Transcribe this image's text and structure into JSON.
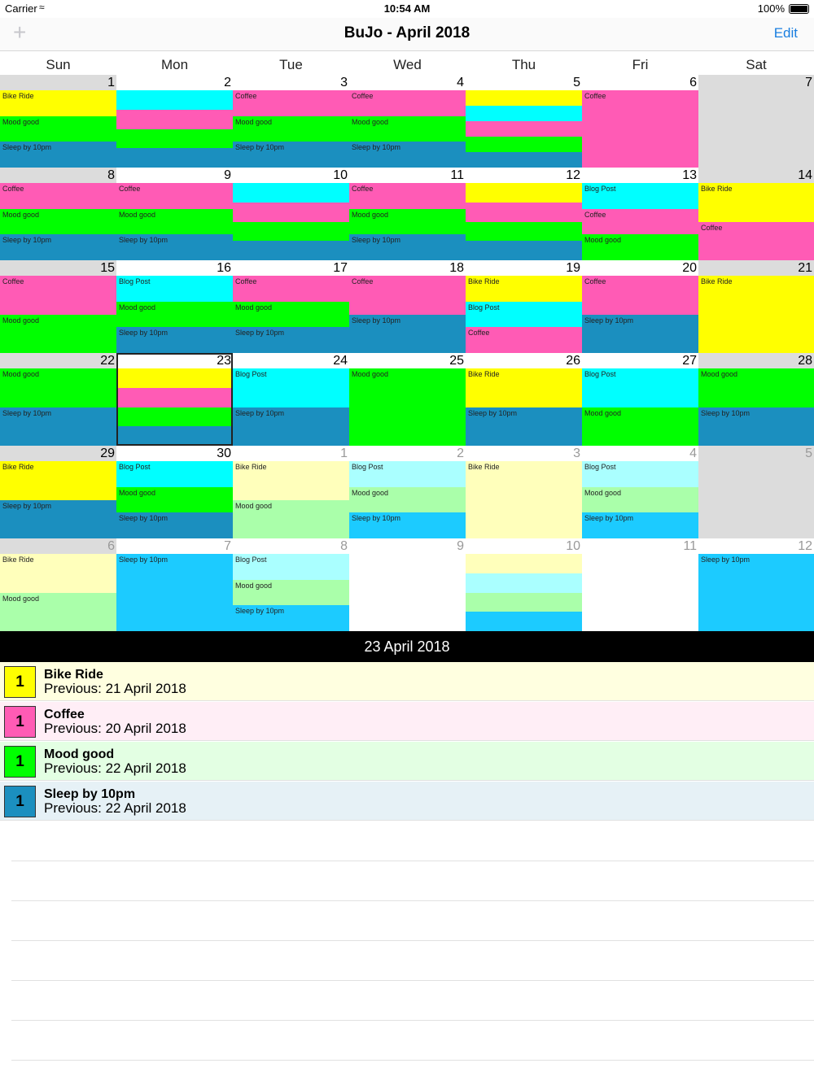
{
  "status_bar": {
    "carrier": "Carrier",
    "time": "10:54 AM",
    "battery": "100%"
  },
  "nav": {
    "title": "BuJo - April 2018",
    "edit_label": "Edit",
    "add_label": "+"
  },
  "weekdays": [
    "Sun",
    "Mon",
    "Tue",
    "Wed",
    "Thu",
    "Fri",
    "Sat"
  ],
  "colors": {
    "bike": "#ffff00",
    "coffee": "#ff5bb5",
    "mood": "#00ff00",
    "sleep": "#1b8fbf",
    "blog": "#00ffff",
    "weekend_head": "#dcdcdc",
    "weekend_empty": "#dcdcdc",
    "bike_light": "#ffffbb",
    "mood_light": "#aaffaa",
    "blog_light": "#aaffff",
    "sleep_light": "#1ccbff",
    "coffee_light": "#ffc8e6"
  },
  "calendar": {
    "selected_day": "23",
    "weeks": [
      {
        "days": [
          {
            "num": "1",
            "other": false,
            "weekend": true,
            "segs": [
              [
                "bike",
                "Bike Ride"
              ],
              [
                "mood",
                "Mood good"
              ],
              [
                "sleep",
                "Sleep by 10pm"
              ]
            ]
          },
          {
            "num": "2",
            "other": false,
            "weekend": false,
            "segs": [
              [
                "blog",
                ""
              ],
              [
                "coffee",
                ""
              ],
              [
                "mood",
                ""
              ],
              [
                "sleep",
                ""
              ]
            ]
          },
          {
            "num": "3",
            "other": false,
            "weekend": false,
            "segs": [
              [
                "coffee",
                "Coffee"
              ],
              [
                "mood",
                "Mood good"
              ],
              [
                "sleep",
                "Sleep by 10pm"
              ]
            ]
          },
          {
            "num": "4",
            "other": false,
            "weekend": false,
            "segs": [
              [
                "coffee",
                "Coffee"
              ],
              [
                "mood",
                "Mood good"
              ],
              [
                "sleep",
                "Sleep by 10pm"
              ]
            ]
          },
          {
            "num": "5",
            "other": false,
            "weekend": false,
            "segs": [
              [
                "bike",
                ""
              ],
              [
                "blog",
                ""
              ],
              [
                "coffee",
                ""
              ],
              [
                "mood",
                ""
              ],
              [
                "sleep",
                ""
              ]
            ]
          },
          {
            "num": "6",
            "other": false,
            "weekend": false,
            "segs": [
              [
                "coffee",
                "Coffee"
              ]
            ]
          },
          {
            "num": "7",
            "other": false,
            "weekend": true,
            "segs": []
          }
        ]
      },
      {
        "days": [
          {
            "num": "8",
            "other": false,
            "weekend": true,
            "segs": [
              [
                "coffee",
                "Coffee"
              ],
              [
                "mood",
                "Mood good"
              ],
              [
                "sleep",
                "Sleep by 10pm"
              ]
            ]
          },
          {
            "num": "9",
            "other": false,
            "weekend": false,
            "segs": [
              [
                "coffee",
                "Coffee"
              ],
              [
                "mood",
                "Mood good"
              ],
              [
                "sleep",
                "Sleep by 10pm"
              ]
            ]
          },
          {
            "num": "10",
            "other": false,
            "weekend": false,
            "segs": [
              [
                "blog",
                ""
              ],
              [
                "coffee",
                ""
              ],
              [
                "mood",
                ""
              ],
              [
                "sleep",
                ""
              ]
            ]
          },
          {
            "num": "11",
            "other": false,
            "weekend": false,
            "segs": [
              [
                "coffee",
                "Coffee"
              ],
              [
                "mood",
                "Mood good"
              ],
              [
                "sleep",
                "Sleep by 10pm"
              ]
            ]
          },
          {
            "num": "12",
            "other": false,
            "weekend": false,
            "segs": [
              [
                "bike",
                ""
              ],
              [
                "coffee",
                ""
              ],
              [
                "mood",
                ""
              ],
              [
                "sleep",
                ""
              ]
            ]
          },
          {
            "num": "13",
            "other": false,
            "weekend": false,
            "segs": [
              [
                "blog",
                "Blog Post"
              ],
              [
                "coffee",
                "Coffee"
              ],
              [
                "mood",
                "Mood good"
              ]
            ]
          },
          {
            "num": "14",
            "other": false,
            "weekend": true,
            "segs": [
              [
                "bike",
                "Bike Ride"
              ],
              [
                "coffee",
                "Coffee"
              ]
            ]
          }
        ]
      },
      {
        "days": [
          {
            "num": "15",
            "other": false,
            "weekend": true,
            "segs": [
              [
                "coffee",
                "Coffee"
              ],
              [
                "mood",
                "Mood good"
              ]
            ]
          },
          {
            "num": "16",
            "other": false,
            "weekend": false,
            "segs": [
              [
                "blog",
                "Blog Post"
              ],
              [
                "mood",
                "Mood good"
              ],
              [
                "sleep",
                "Sleep by 10pm"
              ]
            ]
          },
          {
            "num": "17",
            "other": false,
            "weekend": false,
            "segs": [
              [
                "coffee",
                "Coffee"
              ],
              [
                "mood",
                "Mood good"
              ],
              [
                "sleep",
                "Sleep by 10pm"
              ]
            ]
          },
          {
            "num": "18",
            "other": false,
            "weekend": false,
            "segs": [
              [
                "coffee",
                "Coffee"
              ],
              [
                "sleep",
                "Sleep by 10pm"
              ]
            ]
          },
          {
            "num": "19",
            "other": false,
            "weekend": false,
            "segs": [
              [
                "bike",
                "Bike Ride"
              ],
              [
                "blog",
                "Blog Post"
              ],
              [
                "coffee",
                "Coffee"
              ]
            ]
          },
          {
            "num": "20",
            "other": false,
            "weekend": false,
            "segs": [
              [
                "coffee",
                "Coffee"
              ],
              [
                "sleep",
                "Sleep by 10pm"
              ]
            ]
          },
          {
            "num": "21",
            "other": false,
            "weekend": true,
            "segs": [
              [
                "bike",
                "Bike Ride"
              ]
            ]
          }
        ]
      },
      {
        "days": [
          {
            "num": "22",
            "other": false,
            "weekend": true,
            "segs": [
              [
                "mood",
                "Mood good"
              ],
              [
                "sleep",
                "Sleep by 10pm"
              ]
            ]
          },
          {
            "num": "23",
            "other": false,
            "weekend": false,
            "segs": [
              [
                "bike",
                ""
              ],
              [
                "coffee",
                ""
              ],
              [
                "mood",
                ""
              ],
              [
                "sleep",
                ""
              ]
            ]
          },
          {
            "num": "24",
            "other": false,
            "weekend": false,
            "segs": [
              [
                "blog",
                "Blog Post"
              ],
              [
                "sleep",
                "Sleep by 10pm"
              ]
            ]
          },
          {
            "num": "25",
            "other": false,
            "weekend": false,
            "segs": [
              [
                "mood",
                "Mood good"
              ]
            ]
          },
          {
            "num": "26",
            "other": false,
            "weekend": false,
            "segs": [
              [
                "bike",
                "Bike Ride"
              ],
              [
                "sleep",
                "Sleep by 10pm"
              ]
            ]
          },
          {
            "num": "27",
            "other": false,
            "weekend": false,
            "segs": [
              [
                "blog",
                "Blog Post"
              ],
              [
                "mood",
                "Mood good"
              ]
            ]
          },
          {
            "num": "28",
            "other": false,
            "weekend": true,
            "segs": [
              [
                "mood",
                "Mood good"
              ],
              [
                "sleep",
                "Sleep by 10pm"
              ]
            ]
          }
        ]
      },
      {
        "days": [
          {
            "num": "29",
            "other": false,
            "weekend": true,
            "segs": [
              [
                "bike",
                "Bike Ride"
              ],
              [
                "sleep",
                "Sleep by 10pm"
              ]
            ]
          },
          {
            "num": "30",
            "other": false,
            "weekend": false,
            "segs": [
              [
                "blog",
                "Blog Post"
              ],
              [
                "mood",
                "Mood good"
              ],
              [
                "sleep",
                "Sleep by 10pm"
              ]
            ]
          },
          {
            "num": "1",
            "other": true,
            "weekend": false,
            "segs": [
              [
                "bike_light",
                "Bike Ride"
              ],
              [
                "mood_light",
                "Mood good"
              ]
            ]
          },
          {
            "num": "2",
            "other": true,
            "weekend": false,
            "segs": [
              [
                "blog_light",
                "Blog Post"
              ],
              [
                "mood_light",
                "Mood good"
              ],
              [
                "sleep_light",
                "Sleep by 10pm"
              ]
            ]
          },
          {
            "num": "3",
            "other": true,
            "weekend": false,
            "segs": [
              [
                "bike_light",
                "Bike Ride"
              ]
            ]
          },
          {
            "num": "4",
            "other": true,
            "weekend": false,
            "segs": [
              [
                "blog_light",
                "Blog Post"
              ],
              [
                "mood_light",
                "Mood good"
              ],
              [
                "sleep_light",
                "Sleep by 10pm"
              ]
            ]
          },
          {
            "num": "5",
            "other": true,
            "weekend": true,
            "segs": []
          }
        ]
      },
      {
        "days": [
          {
            "num": "6",
            "other": true,
            "weekend": true,
            "segs": [
              [
                "bike_light",
                "Bike Ride"
              ],
              [
                "mood_light",
                "Mood good"
              ]
            ]
          },
          {
            "num": "7",
            "other": true,
            "weekend": false,
            "segs": [
              [
                "sleep_light",
                "Sleep by 10pm"
              ]
            ]
          },
          {
            "num": "8",
            "other": true,
            "weekend": false,
            "segs": [
              [
                "blog_light",
                "Blog Post"
              ],
              [
                "mood_light",
                "Mood good"
              ],
              [
                "sleep_light",
                "Sleep by 10pm"
              ]
            ]
          },
          {
            "num": "9",
            "other": true,
            "weekend": false,
            "segs": []
          },
          {
            "num": "10",
            "other": true,
            "weekend": false,
            "segs": [
              [
                "bike_light",
                ""
              ],
              [
                "blog_light",
                ""
              ],
              [
                "mood_light",
                ""
              ],
              [
                "sleep_light",
                ""
              ]
            ]
          },
          {
            "num": "11",
            "other": true,
            "weekend": false,
            "segs": []
          },
          {
            "num": "12",
            "other": true,
            "weekend": false,
            "segs": [
              [
                "sleep_light",
                "Sleep by 10pm"
              ]
            ]
          }
        ]
      }
    ]
  },
  "detail": {
    "date_header": "23 April 2018",
    "items": [
      {
        "count": "1",
        "name": "Bike Ride",
        "previous": "Previous: 21 April 2018",
        "color": "bike",
        "bg": "#ffffe0"
      },
      {
        "count": "1",
        "name": "Coffee",
        "previous": "Previous: 20 April 2018",
        "color": "coffee",
        "bg": "#ffeef6"
      },
      {
        "count": "1",
        "name": "Mood good",
        "previous": "Previous: 22 April 2018",
        "color": "mood",
        "bg": "#e3ffe3"
      },
      {
        "count": "1",
        "name": "Sleep by 10pm",
        "previous": "Previous: 22 April 2018",
        "color": "sleep",
        "bg": "#e6f1f6"
      }
    ]
  }
}
